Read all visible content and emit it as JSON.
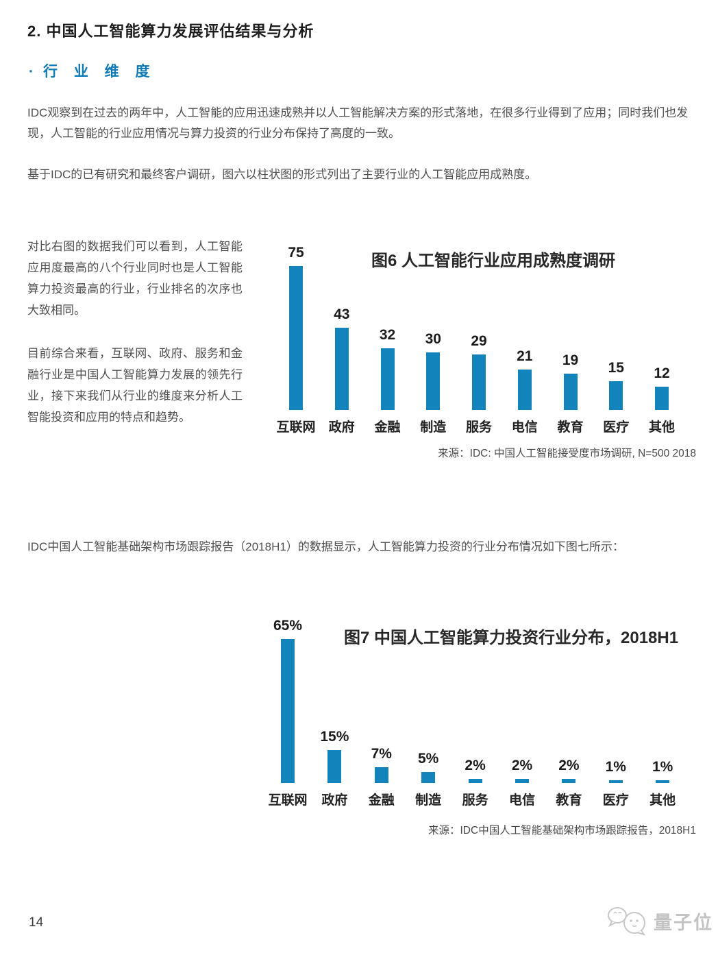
{
  "page": {
    "section_title": "2. 中国人工智能算力发展评估结果与分析",
    "subsection_bullet": "·",
    "subsection_title": "行 业 维 度",
    "para1": "IDC观察到在过去的两年中，人工智能的应用迅速成熟并以人工智能解决方案的形式落地，在很多行业得到了应用；同时我们也发现，人工智能的行业应用情况与算力投资的行业分布保持了高度的一致。",
    "para2": "基于IDC的已有研究和最终客户调研，图六以柱状图的形式列出了主要行业的人工智能应用成熟度。",
    "side_para1": "对比右图的数据我们可以看到，人工智能应用度最高的八个行业同时也是人工智能算力投资最高的行业，行业排名的次序也大致相同。",
    "side_para2": "目前综合来看，互联网、政府、服务和金融行业是中国人工智能算力发展的领先行业，接下来我们从行业的维度来分析人工智能投资和应用的特点和趋势。",
    "mid_para": "IDC中国人工智能基础架构市场跟踪报告（2018H1）的数据显示，人工智能算力投资的行业分布情况如下图七所示：",
    "page_number": "14",
    "watermark_text": "量子位"
  },
  "colors": {
    "bar_blue": "#1383bc",
    "heading_blue": "#0f7ab6",
    "title_dark": "#1c1c1c",
    "body_text": "#4f4f4f",
    "watermark_gray": "#c3c3c3"
  },
  "chart_data": [
    {
      "type": "bar",
      "title": "图6 人工智能行业应用成熟度调研",
      "categories": [
        "互联网",
        "政府",
        "金融",
        "制造",
        "服务",
        "电信",
        "教育",
        "医疗",
        "其他"
      ],
      "values": [
        75,
        43,
        32,
        30,
        29,
        21,
        19,
        15,
        12
      ],
      "value_labels": [
        "75",
        "43",
        "32",
        "30",
        "29",
        "21",
        "19",
        "15",
        "12"
      ],
      "xlabel": "",
      "ylabel": "",
      "ylim": [
        0,
        80
      ],
      "grid": false,
      "legend": "none",
      "bar_color": "#1383bc",
      "source": "来源：IDC: 中国人工智能接受度市场调研, N=500  2018"
    },
    {
      "type": "bar",
      "title": "图7 中国人工智能算力投资行业分布，2018H1",
      "categories": [
        "互联网",
        "政府",
        "金融",
        "制造",
        "服务",
        "电信",
        "教育",
        "医疗",
        "其他"
      ],
      "values": [
        65,
        15,
        7,
        5,
        2,
        2,
        2,
        1,
        1
      ],
      "value_labels": [
        "65%",
        "15%",
        "7%",
        "5%",
        "2%",
        "2%",
        "2%",
        "1%",
        "1%"
      ],
      "xlabel": "",
      "ylabel": "",
      "ylim": [
        0,
        70
      ],
      "grid": false,
      "legend": "none",
      "bar_color": "#1383bc",
      "source": "来源：IDC中国人工智能基础架构市场跟踪报告，2018H1"
    }
  ]
}
